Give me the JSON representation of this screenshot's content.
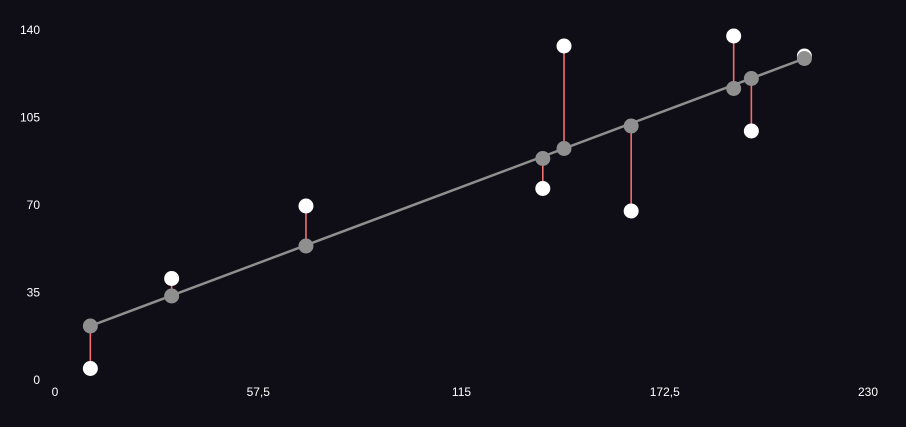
{
  "chart_data": {
    "type": "scatter",
    "title": "",
    "xlabel": "",
    "ylabel": "",
    "xlim": [
      0,
      230
    ],
    "ylim": [
      0,
      140
    ],
    "x_ticks": [
      "0",
      "57,5",
      "115",
      "172,5",
      "230"
    ],
    "y_ticks": [
      "0",
      "35",
      "70",
      "105",
      "140"
    ],
    "x_tick_values": [
      0,
      57.5,
      115,
      172.5,
      230
    ],
    "y_tick_values": [
      0,
      35,
      70,
      105,
      140
    ],
    "grid": false,
    "regression_line": {
      "x_start": 10,
      "x_end": 212
    },
    "points": [
      {
        "x": 10,
        "y": 5,
        "fitted": 22
      },
      {
        "x": 33,
        "y": 41,
        "fitted": 34
      },
      {
        "x": 71,
        "y": 70,
        "fitted": 54
      },
      {
        "x": 138,
        "y": 77,
        "fitted": 89
      },
      {
        "x": 144,
        "y": 134,
        "fitted": 93
      },
      {
        "x": 163,
        "y": 68,
        "fitted": 102
      },
      {
        "x": 192,
        "y": 138,
        "fitted": 117
      },
      {
        "x": 197,
        "y": 100,
        "fitted": 121
      },
      {
        "x": 212,
        "y": 130,
        "fitted": 129
      }
    ],
    "colors": {
      "background": "#0f0e17",
      "observed": "#ffffff",
      "fitted": "#8f8f8f",
      "line": "#8f8f8f",
      "residual": "#f06e6e",
      "text": "#ffffff"
    }
  }
}
